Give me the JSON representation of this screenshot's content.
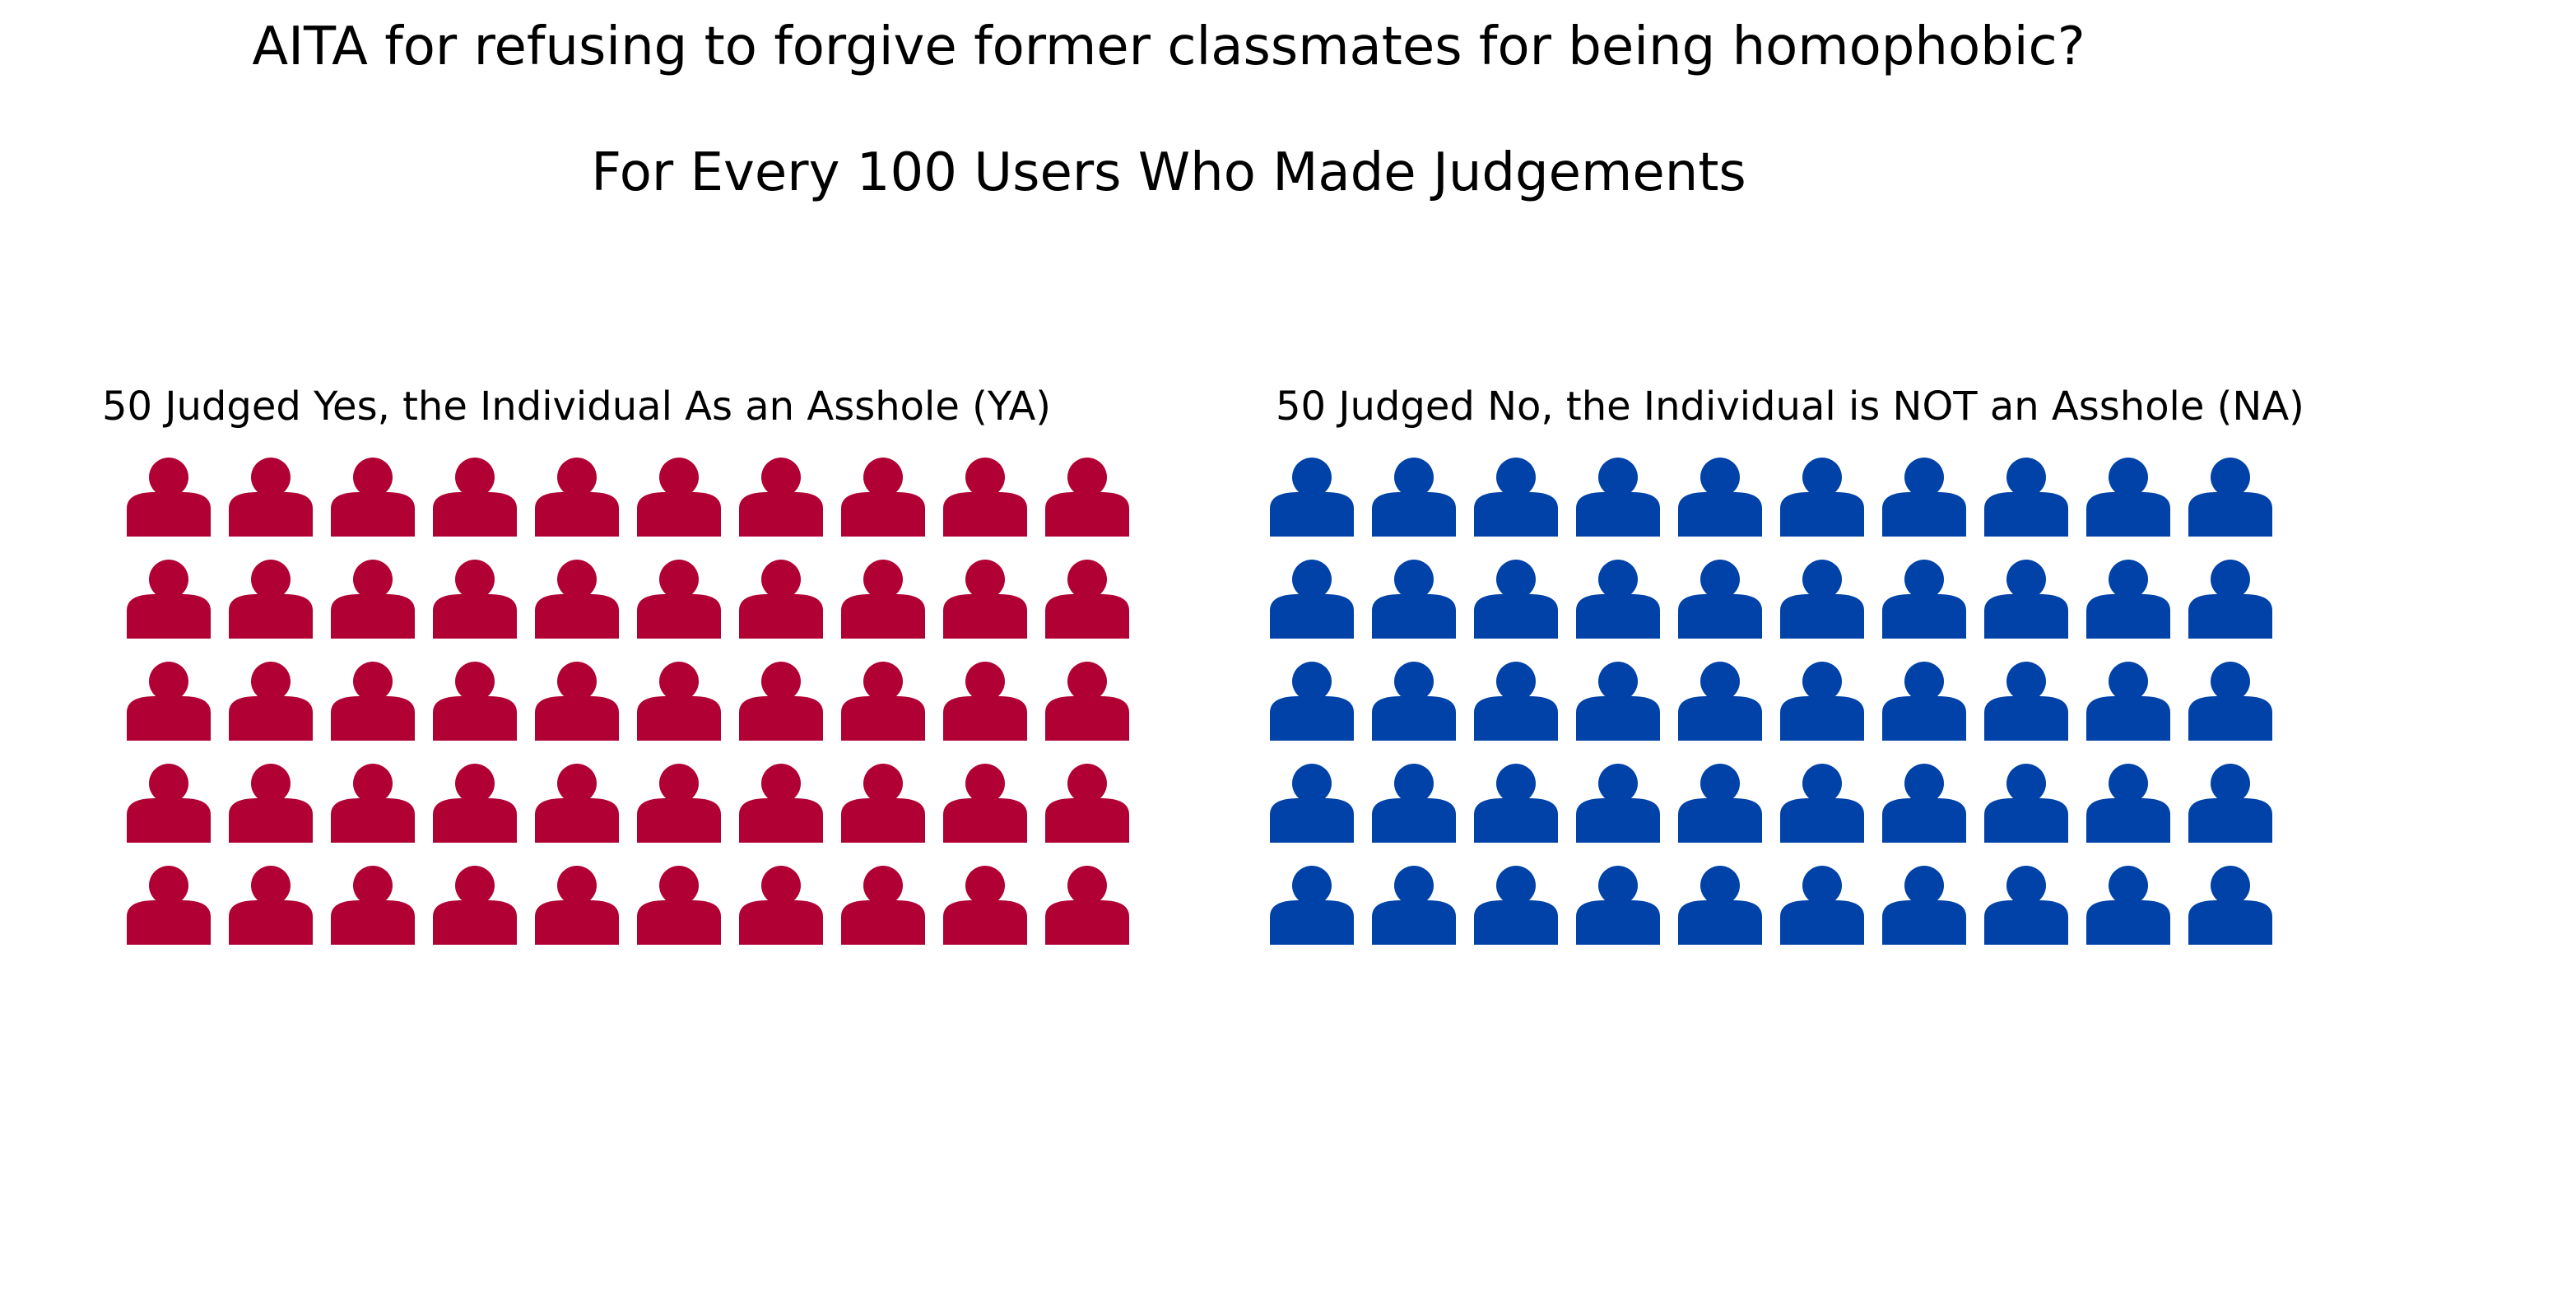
{
  "chart_data": {
    "type": "pictograph",
    "title": "AITA for refusing to forgive former classmates for being homophobic?",
    "subtitle": "For Every 100 Users Who Made Judgements",
    "panels": [
      {
        "label": "50 Judged Yes, the Individual As an Asshole (YA)",
        "count": 50,
        "rows": 5,
        "cols": 10,
        "color": "#b10034"
      },
      {
        "label": "50 Judged No, the Individual is NOT an Asshole (NA)",
        "count": 50,
        "rows": 5,
        "cols": 10,
        "color": "#0042a8"
      }
    ]
  }
}
